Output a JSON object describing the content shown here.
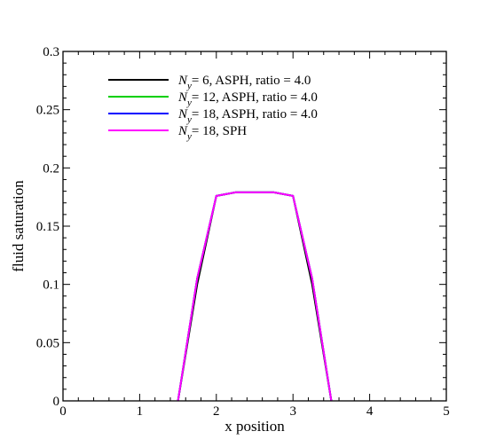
{
  "chart_data": {
    "type": "line",
    "title": "",
    "xlabel": "x position",
    "ylabel": "fluid saturation",
    "xlim": [
      0,
      5
    ],
    "ylim": [
      0,
      0.3
    ],
    "x_ticks": [
      "0",
      "1",
      "2",
      "3",
      "4",
      "5"
    ],
    "y_ticks": [
      "0",
      "0.05",
      "0.1",
      "0.15",
      "0.2",
      "0.25",
      "0.3"
    ],
    "grid": false,
    "legend_position": "top-left",
    "series": [
      {
        "legend_prefix": "N",
        "legend_subscript": "y",
        "legend_suffix": "= 6, ASPH, ratio = 4.0",
        "color": "#000000",
        "x": [
          1.5,
          1.75,
          2.0,
          2.25,
          2.5,
          2.75,
          3.0,
          3.25,
          3.5
        ],
        "y": [
          0.0,
          0.1,
          0.176,
          0.179,
          0.179,
          0.179,
          0.176,
          0.1,
          0.0
        ]
      },
      {
        "legend_prefix": "N",
        "legend_subscript": "y",
        "legend_suffix": "= 12, ASPH, ratio = 4.0",
        "color": "#00d000",
        "x": [
          1.5,
          1.75,
          2.0,
          2.25,
          2.5,
          2.75,
          3.0,
          3.25,
          3.5
        ],
        "y": [
          0.0,
          0.105,
          0.176,
          0.179,
          0.179,
          0.179,
          0.176,
          0.105,
          0.0
        ]
      },
      {
        "legend_prefix": "N",
        "legend_subscript": "y",
        "legend_suffix": "= 18, ASPH, ratio = 4.0",
        "color": "#0000ff",
        "x": [
          1.5,
          1.75,
          2.0,
          2.25,
          2.5,
          2.75,
          3.0,
          3.25,
          3.5
        ],
        "y": [
          0.0,
          0.105,
          0.176,
          0.179,
          0.179,
          0.179,
          0.176,
          0.105,
          0.0
        ]
      },
      {
        "legend_prefix": "N",
        "legend_subscript": "y",
        "legend_suffix": "= 18, SPH",
        "color": "#ff00ff",
        "x": [
          1.5,
          1.75,
          2.0,
          2.25,
          2.5,
          2.75,
          3.0,
          3.25,
          3.5
        ],
        "y": [
          0.0,
          0.105,
          0.176,
          0.179,
          0.179,
          0.179,
          0.176,
          0.105,
          0.0
        ]
      }
    ]
  }
}
